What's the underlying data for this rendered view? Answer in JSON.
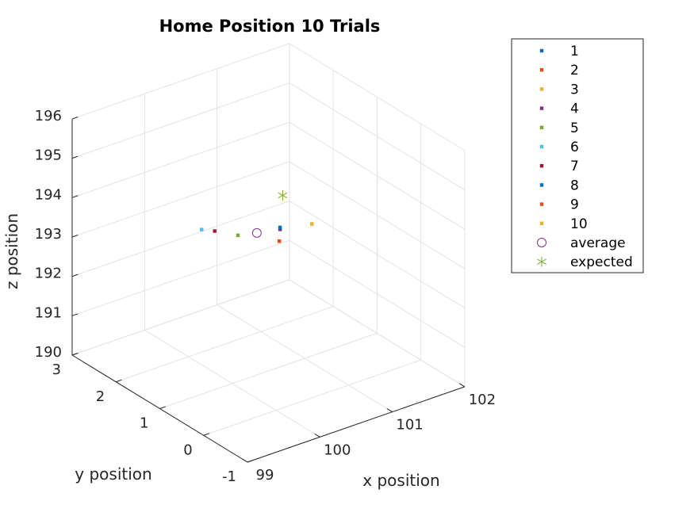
{
  "chart_data": {
    "type": "scatter",
    "projection": "3d",
    "title": "Home Position 10 Trials",
    "xlabel": "x position",
    "ylabel": "y position",
    "zlabel": "z position",
    "xlim": [
      99,
      102
    ],
    "ylim": [
      -1,
      3
    ],
    "zlim": [
      190,
      196
    ],
    "xticks": [
      "99",
      "100",
      "101",
      "102"
    ],
    "yticks": [
      "-1",
      "0",
      "1",
      "2",
      "3"
    ],
    "zticks": [
      "190",
      "191",
      "192",
      "193",
      "194",
      "195",
      "196"
    ],
    "grid": true,
    "legend_position": "top-right",
    "series": [
      {
        "name": "1",
        "marker": "dot",
        "color": "#0072BD",
        "points": [
          [
            100.6,
            0.9,
            193.6
          ]
        ]
      },
      {
        "name": "2",
        "marker": "dot",
        "color": "#D95319",
        "points": [
          [
            100.65,
            1.0,
            193.2
          ]
        ]
      },
      {
        "name": "3",
        "marker": "dot",
        "color": "#EDB120",
        "points": [
          [
            101.1,
            1.0,
            193.35
          ]
        ]
      },
      {
        "name": "4",
        "marker": "dot",
        "color": "#7E2F8E",
        "points": [
          [
            100.6,
            0.9,
            193.6
          ]
        ]
      },
      {
        "name": "5",
        "marker": "dot",
        "color": "#77AC30",
        "points": [
          [
            100.2,
            1.2,
            193.5
          ]
        ]
      },
      {
        "name": "6",
        "marker": "dot",
        "color": "#4DBEEE",
        "points": [
          [
            99.85,
            1.45,
            193.7
          ]
        ]
      },
      {
        "name": "7",
        "marker": "dot",
        "color": "#A2142F",
        "points": [
          [
            100.0,
            1.4,
            193.6
          ]
        ]
      },
      {
        "name": "8",
        "marker": "dot",
        "color": "#0072BD",
        "points": [
          [
            100.6,
            0.9,
            193.65
          ]
        ]
      },
      {
        "name": "9",
        "marker": "dot",
        "color": "#D95319",
        "points": [
          [
            100.65,
            1.0,
            193.2
          ]
        ]
      },
      {
        "name": "10",
        "marker": "dot",
        "color": "#EDB120",
        "points": [
          [
            101.1,
            1.0,
            193.35
          ]
        ]
      },
      {
        "name": "average",
        "marker": "circle",
        "color": "#7E2F8E",
        "points": [
          [
            100.4,
            1.1,
            193.5
          ]
        ]
      },
      {
        "name": "expected",
        "marker": "asterisk",
        "color": "#77AC30",
        "points": [
          [
            101.0,
            1.5,
            193.8
          ]
        ]
      }
    ]
  }
}
